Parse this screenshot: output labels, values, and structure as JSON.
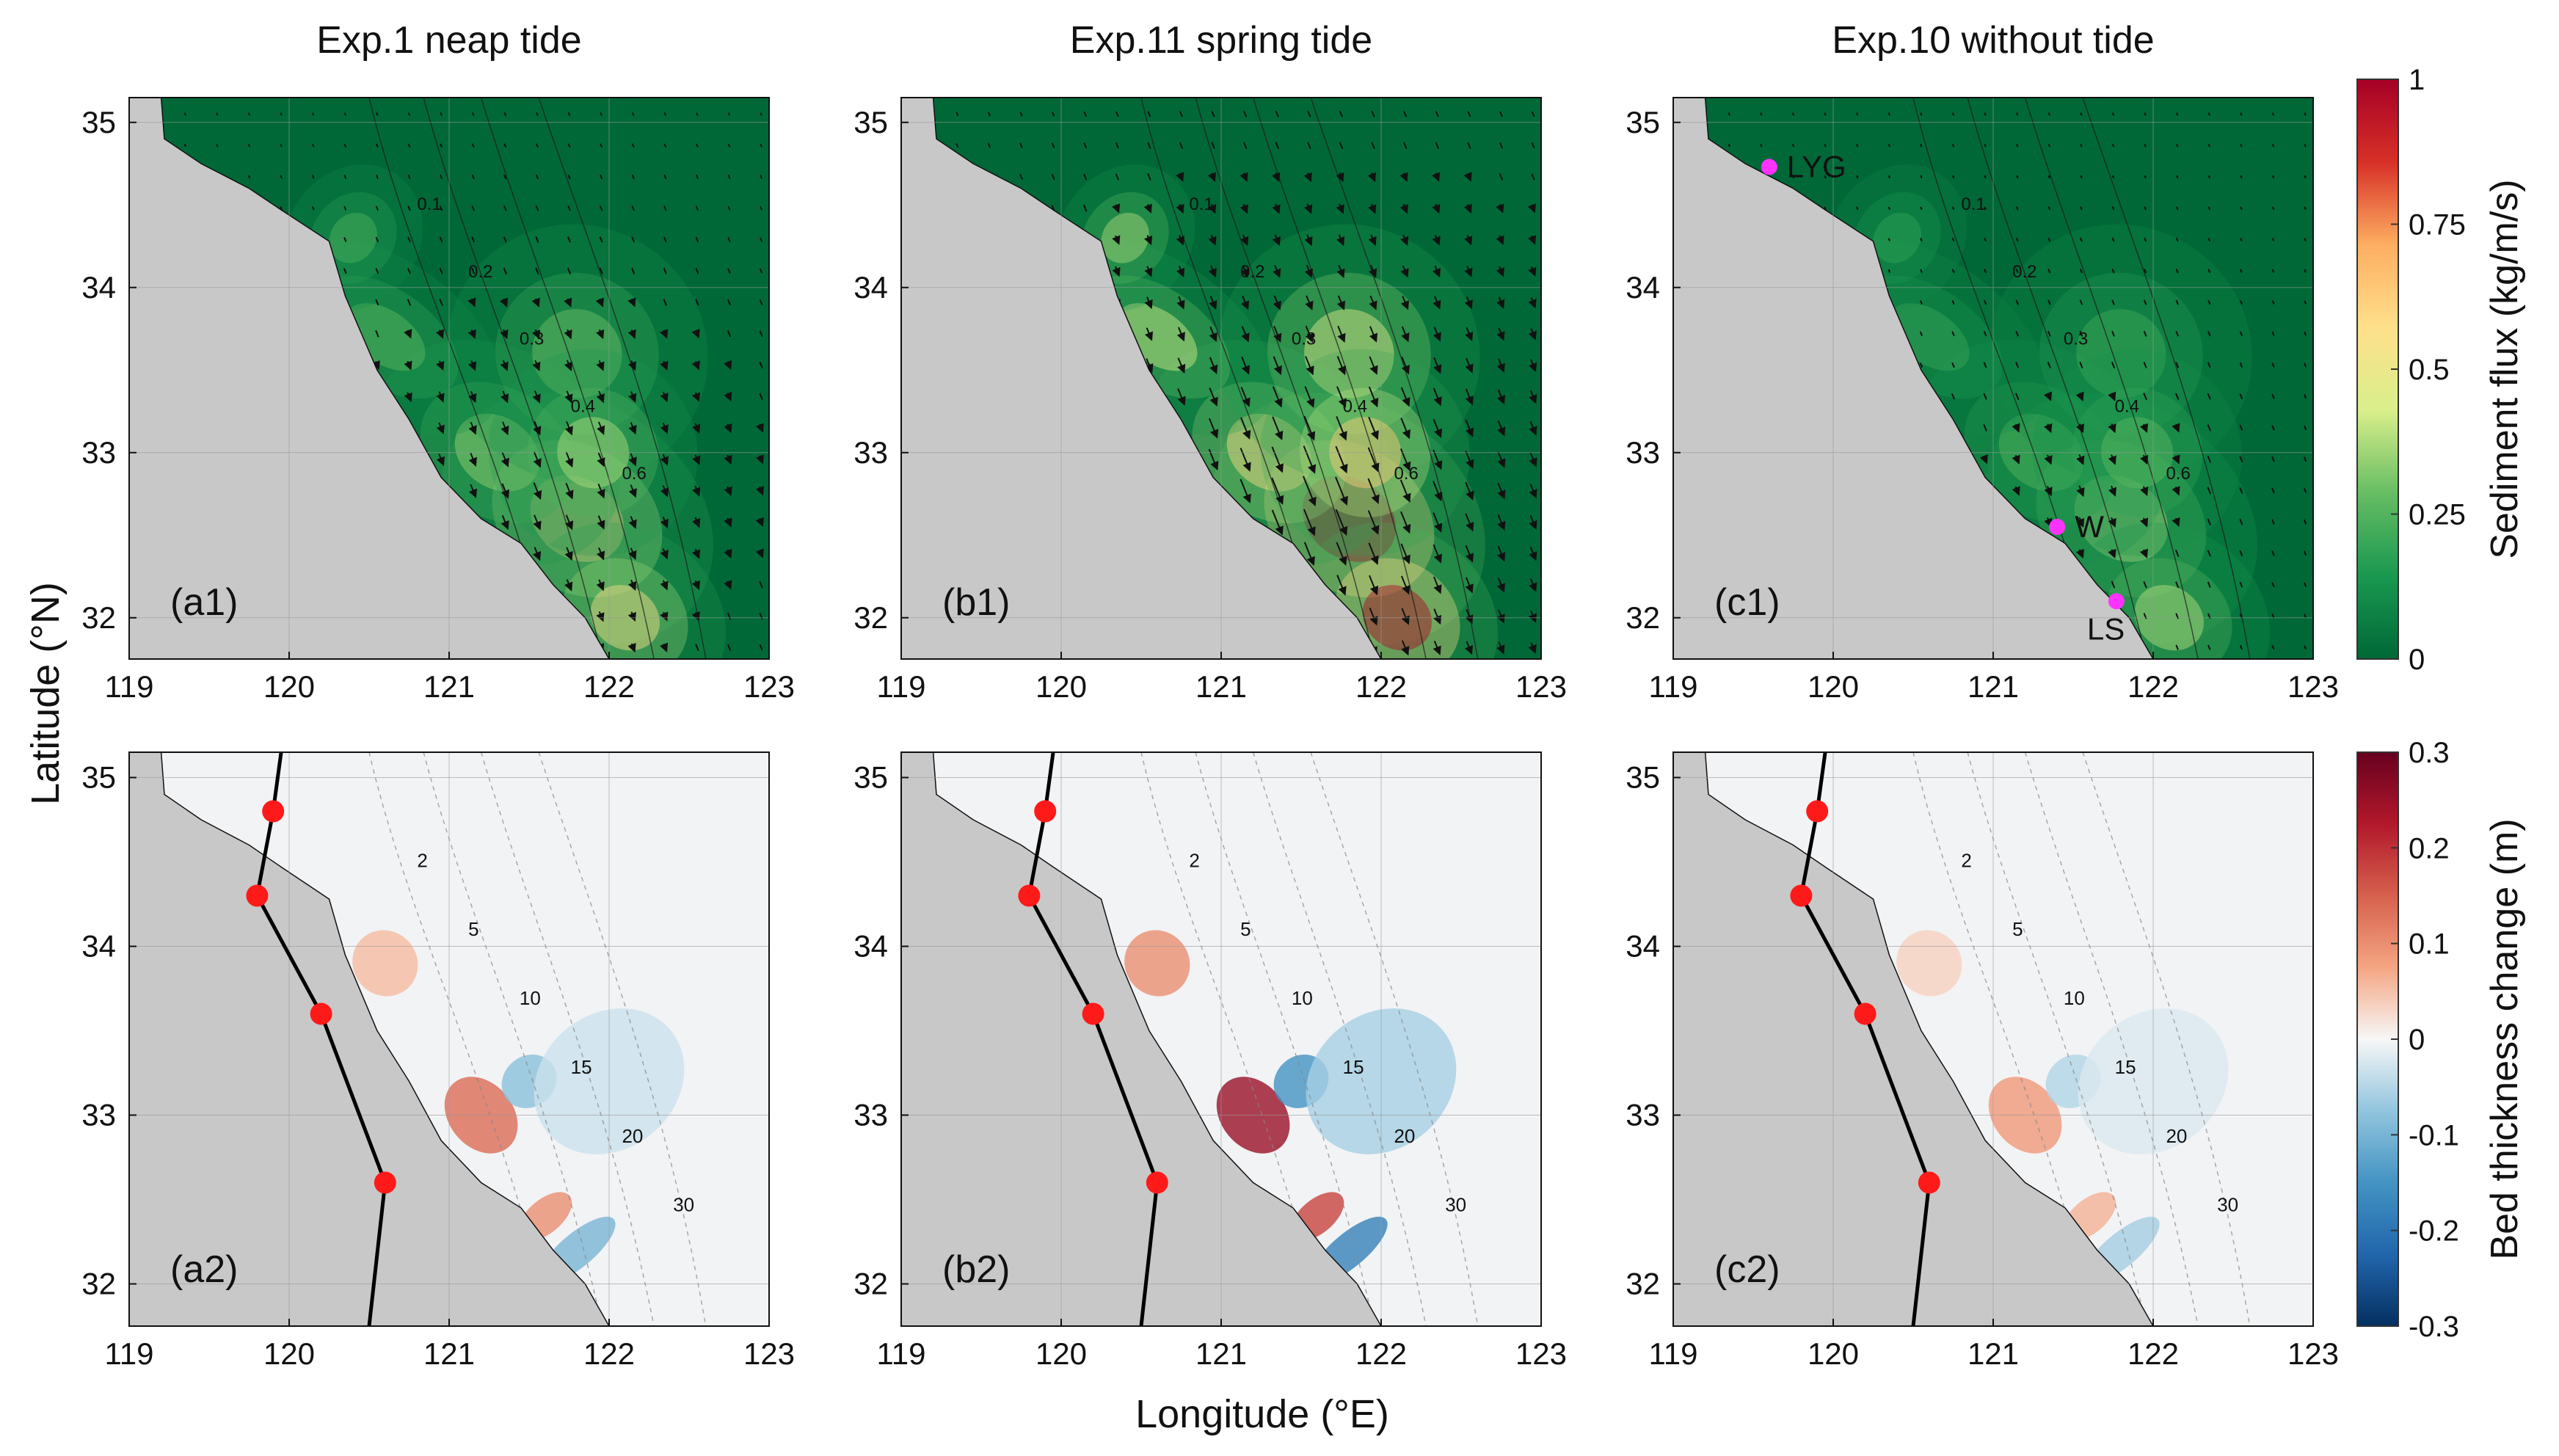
{
  "figure": {
    "x_axis_label": "Longitude (°E)",
    "y_axis_label": "Latitude (°N)",
    "lon_range": [
      119,
      123
    ],
    "lat_range": [
      31.75,
      35.15
    ],
    "lon_ticks": [
      "119",
      "120",
      "121",
      "122",
      "123"
    ],
    "lat_ticks": [
      "32",
      "33",
      "34",
      "35"
    ],
    "land_color": "#c8c8c8"
  },
  "columns": [
    {
      "title": "Exp.1 neap tide",
      "flux_label": "(a1)",
      "bed_label": "(a2)",
      "intensity": 0.55
    },
    {
      "title": "Exp.11 spring tide",
      "flux_label": "(b1)",
      "bed_label": "(b2)",
      "intensity": 1.0
    },
    {
      "title": "Exp.10 without tide",
      "flux_label": "(c1)",
      "bed_label": "(c2)",
      "intensity": 0.35
    }
  ],
  "flux_colorbar": {
    "label": "Sediment flux (kg/m/s)",
    "ticks": [
      "0",
      "0.25",
      "0.5",
      "0.75",
      "1"
    ],
    "colors": [
      "#006837",
      "#1a9850",
      "#66bd63",
      "#d9ef8b",
      "#fee08b",
      "#fdae61",
      "#d73027",
      "#a50026"
    ]
  },
  "bed_colorbar": {
    "label": "Bed thickness change (m)",
    "ticks": [
      "-0.3",
      "-0.2",
      "-0.1",
      "0",
      "0.1",
      "0.2",
      "0.3"
    ],
    "colors": [
      "#053061",
      "#2166ac",
      "#4393c3",
      "#92c5de",
      "#f7f7f7",
      "#f4a582",
      "#d6604d",
      "#b2182b",
      "#67001f"
    ]
  },
  "flux_contour_labels": [
    "0.1",
    "0.2",
    "0.3",
    "0.4",
    "0.6"
  ],
  "depth_contour_labels": [
    "2",
    "5",
    "10",
    "15",
    "20",
    "30"
  ],
  "sites": [
    {
      "name": "LYG",
      "lon": 119.6,
      "lat": 34.73
    },
    {
      "name": "W",
      "lon": 121.4,
      "lat": 32.55
    },
    {
      "name": "LS",
      "lon": 121.77,
      "lat": 32.1
    }
  ],
  "seawall_line": [
    {
      "lon": 119.95,
      "lat": 35.15
    },
    {
      "lon": 119.9,
      "lat": 34.8
    },
    {
      "lon": 119.8,
      "lat": 34.3
    },
    {
      "lon": 120.2,
      "lat": 33.6
    },
    {
      "lon": 120.6,
      "lat": 32.6
    },
    {
      "lon": 120.5,
      "lat": 31.75
    }
  ],
  "seawall_points": [
    {
      "lon": 119.9,
      "lat": 34.8
    },
    {
      "lon": 119.8,
      "lat": 34.3
    },
    {
      "lon": 120.2,
      "lat": 33.6
    },
    {
      "lon": 120.6,
      "lat": 32.6
    }
  ],
  "coastline": [
    {
      "lon": 119.2,
      "lat": 35.15
    },
    {
      "lon": 119.22,
      "lat": 34.9
    },
    {
      "lon": 119.45,
      "lat": 34.75
    },
    {
      "lon": 119.75,
      "lat": 34.6
    },
    {
      "lon": 119.95,
      "lat": 34.47
    },
    {
      "lon": 120.25,
      "lat": 34.28
    },
    {
      "lon": 120.35,
      "lat": 33.95
    },
    {
      "lon": 120.55,
      "lat": 33.5
    },
    {
      "lon": 120.75,
      "lat": 33.2
    },
    {
      "lon": 120.95,
      "lat": 32.85
    },
    {
      "lon": 121.2,
      "lat": 32.6
    },
    {
      "lon": 121.45,
      "lat": 32.45
    },
    {
      "lon": 121.65,
      "lat": 32.2
    },
    {
      "lon": 121.85,
      "lat": 32.0
    },
    {
      "lon": 122.0,
      "lat": 31.75
    }
  ],
  "flux_field": [
    {
      "lon": 121.8,
      "lat": 32.6,
      "value": 0.95,
      "spread_lon": 0.45,
      "spread_lat": 0.55
    },
    {
      "lon": 122.1,
      "lat": 32.0,
      "value": 0.9,
      "spread_lon": 0.35,
      "spread_lat": 0.4
    },
    {
      "lon": 121.3,
      "lat": 33.0,
      "value": 0.5,
      "spread_lon": 0.4,
      "spread_lat": 0.5
    },
    {
      "lon": 121.8,
      "lat": 33.6,
      "value": 0.4,
      "spread_lon": 0.5,
      "spread_lat": 0.5
    },
    {
      "lon": 120.6,
      "lat": 33.7,
      "value": 0.35,
      "spread_lon": 0.3,
      "spread_lat": 0.5
    },
    {
      "lon": 120.4,
      "lat": 34.3,
      "value": 0.3,
      "spread_lon": 0.3,
      "spread_lat": 0.25
    },
    {
      "lon": 121.9,
      "lat": 33.0,
      "value": 0.55,
      "spread_lon": 0.4,
      "spread_lat": 0.4
    }
  ],
  "bed_features": [
    {
      "lon": 121.2,
      "lat": 33.0,
      "value": 0.25,
      "spread_lon": 0.2,
      "spread_lat": 0.25
    },
    {
      "lon": 121.5,
      "lat": 33.2,
      "value": -0.15,
      "spread_lon": 0.18,
      "spread_lat": 0.15
    },
    {
      "lon": 121.8,
      "lat": 32.2,
      "value": -0.18,
      "spread_lon": 0.3,
      "spread_lat": 0.1
    },
    {
      "lon": 121.6,
      "lat": 32.4,
      "value": 0.18,
      "spread_lon": 0.2,
      "spread_lat": 0.1
    },
    {
      "lon": 120.6,
      "lat": 33.9,
      "value": 0.1,
      "spread_lon": 0.2,
      "spread_lat": 0.2
    },
    {
      "lon": 122.0,
      "lat": 33.2,
      "value": -0.06,
      "spread_lon": 0.5,
      "spread_lat": 0.4
    }
  ]
}
